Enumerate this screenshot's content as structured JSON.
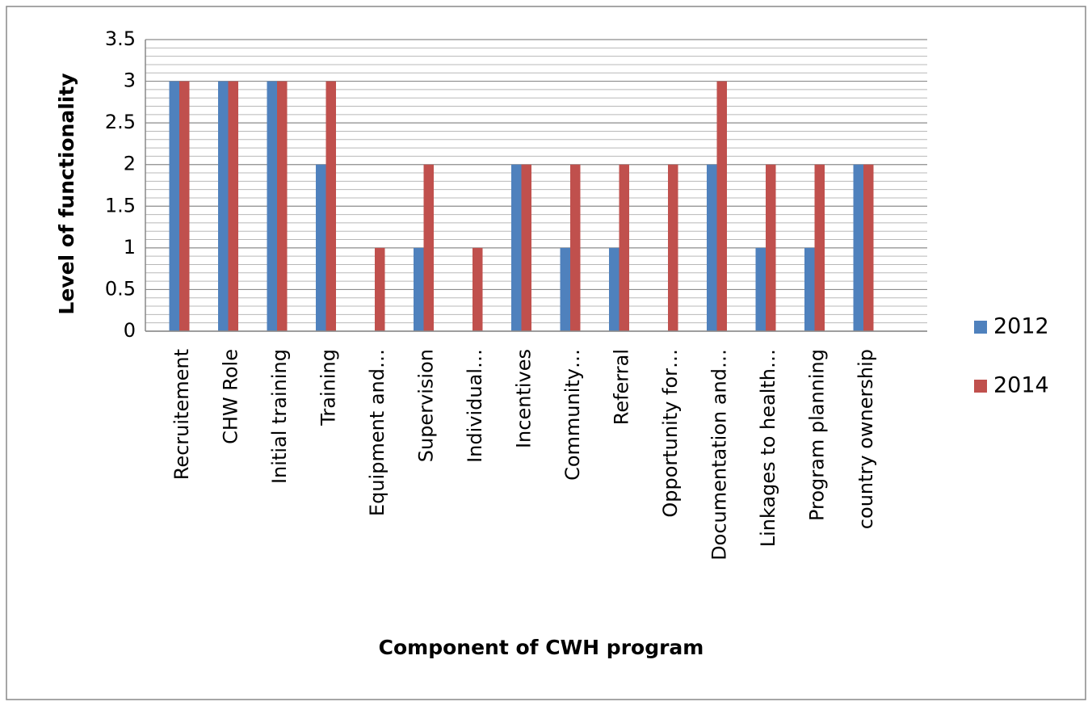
{
  "chart_data": {
    "type": "bar",
    "x_label": "Component of CWH program",
    "y_label": "Level of functionality",
    "categories": [
      "Recruitement",
      "CHW Role",
      "Initial training",
      "Training",
      "Equipment and…",
      "Supervision",
      "Individual…",
      "Incentives",
      "Community…",
      "Referral",
      "Opportunity for…",
      "Documentation and…",
      "Linkages to health…",
      "Program planning",
      "country ownership"
    ],
    "series": [
      {
        "name": "2012",
        "color": "#4f81bd",
        "values": [
          3,
          3,
          3,
          2,
          0,
          1,
          0,
          2,
          1,
          1,
          0,
          2,
          1,
          1,
          2
        ]
      },
      {
        "name": "2014",
        "color": "#c0504d",
        "values": [
          3,
          3,
          3,
          3,
          1,
          2,
          1,
          2,
          2,
          2,
          2,
          3,
          2,
          2,
          2
        ]
      }
    ],
    "ylim": [
      0,
      3.5
    ],
    "yticks": [
      0,
      0.5,
      1,
      1.5,
      2,
      2.5,
      3,
      3.5
    ],
    "grid": true,
    "minor_grid": true,
    "legend": "right"
  }
}
